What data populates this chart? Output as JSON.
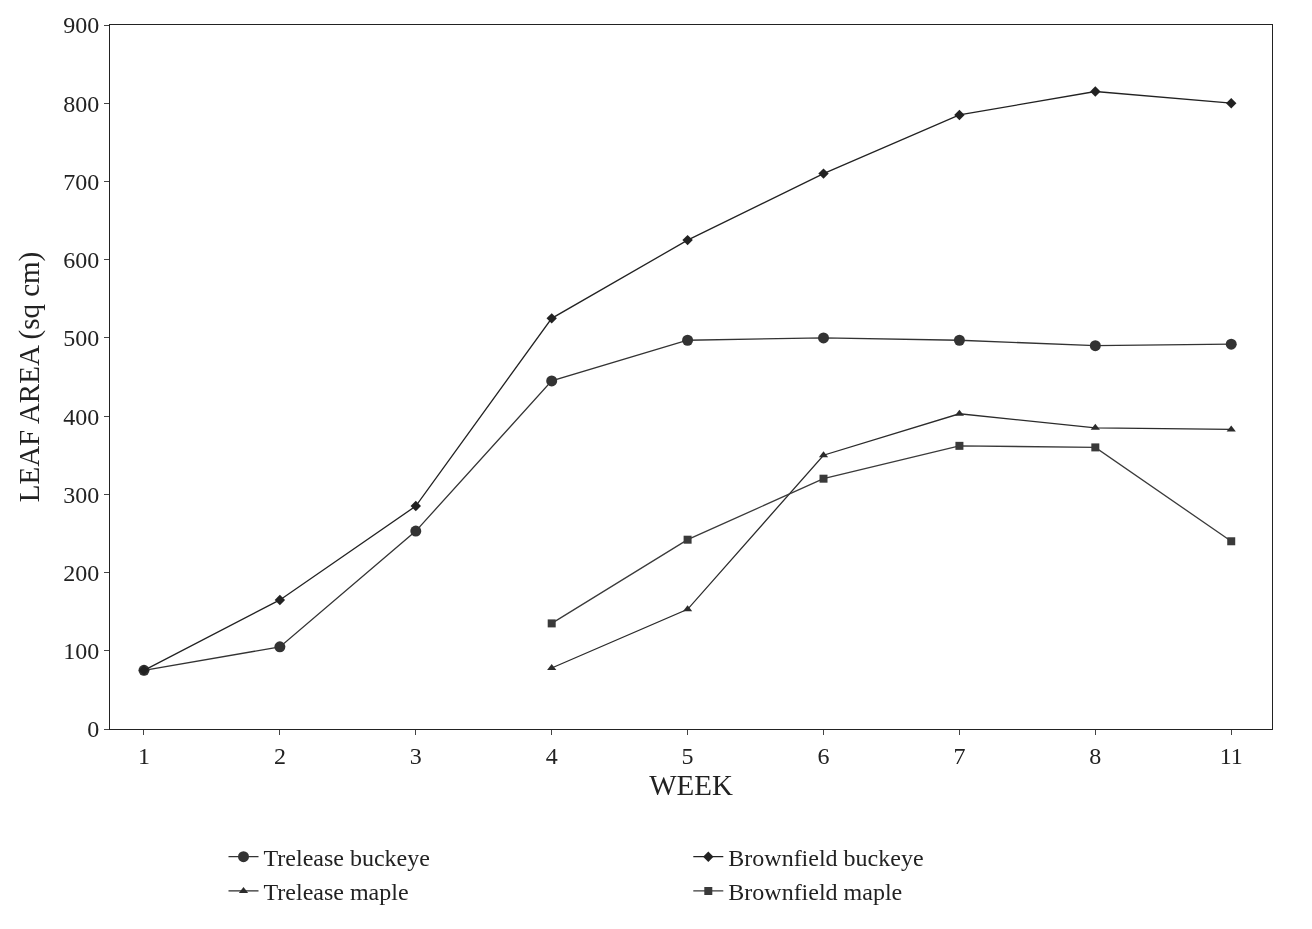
{
  "chart_data": {
    "type": "line",
    "xlabel": "WEEK",
    "ylabel": "LEAF AREA (sq cm)",
    "categories": [
      "1",
      "2",
      "3",
      "4",
      "5",
      "6",
      "7",
      "8",
      "11"
    ],
    "ylim": [
      0,
      900
    ],
    "yticks": [
      0,
      100,
      200,
      300,
      400,
      500,
      600,
      700,
      800,
      900
    ],
    "legend": "bottom",
    "series": [
      {
        "name": "Trelease buckeye",
        "color": "#333333",
        "marker": "circle",
        "values": [
          75,
          105,
          253,
          445,
          497,
          500,
          497,
          490,
          492
        ]
      },
      {
        "name": "Brownfield buckeye",
        "color": "#222222",
        "marker": "diamond",
        "values": [
          75,
          165,
          285,
          525,
          625,
          710,
          785,
          815,
          800
        ]
      },
      {
        "name": "Trelease maple",
        "color": "#2b2b2b",
        "marker": "triangle",
        "values": [
          null,
          null,
          null,
          78,
          153,
          350,
          403,
          385,
          383
        ]
      },
      {
        "name": "Brownfield maple",
        "color": "#3a3a3a",
        "marker": "square",
        "values": [
          null,
          null,
          null,
          135,
          242,
          320,
          362,
          360,
          240
        ]
      }
    ]
  }
}
